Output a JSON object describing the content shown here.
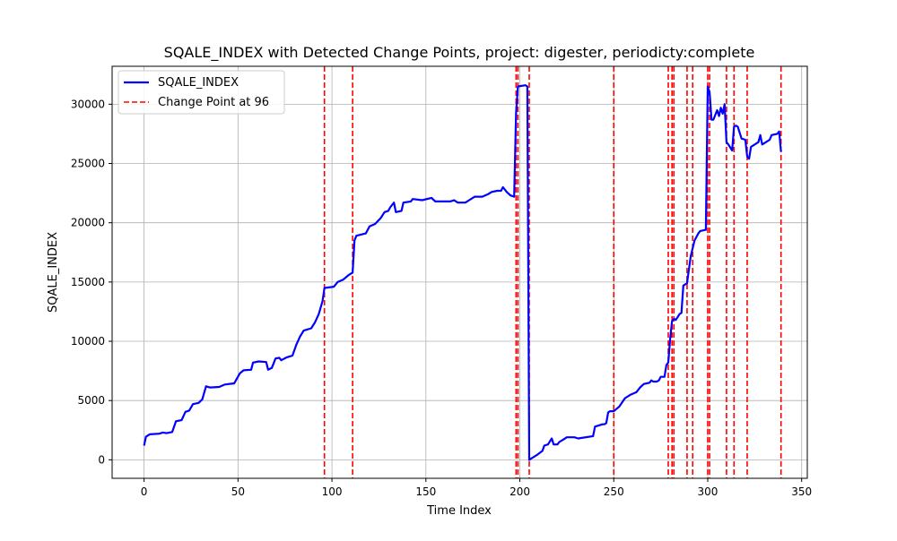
{
  "chart_data": {
    "type": "line",
    "title": "SQALE_INDEX with Detected Change Points, project: digester, periodicty:complete",
    "xlabel": "Time Index",
    "ylabel": "SQALE_INDEX",
    "xlim": [
      -17,
      353
    ],
    "ylim": [
      -1560,
      33200
    ],
    "xticks": [
      0,
      50,
      100,
      150,
      200,
      250,
      300,
      350
    ],
    "yticks": [
      0,
      5000,
      10000,
      15000,
      20000,
      25000,
      30000
    ],
    "grid": true,
    "legend_position": "top-left",
    "legend": [
      {
        "label": "SQALE_INDEX",
        "color": "#0000ff",
        "style": "solid"
      },
      {
        "label": "Change Point at 96",
        "color": "#ff0000",
        "style": "dashed"
      }
    ],
    "series_color": "#0000ff",
    "change_point_color": "#ff0000",
    "change_points": [
      96,
      111,
      198,
      199,
      205,
      250,
      279,
      281,
      282,
      289,
      292,
      300,
      301,
      310,
      314,
      321,
      339
    ],
    "series": [
      {
        "name": "SQALE_INDEX",
        "points": [
          [
            0,
            1200
          ],
          [
            1,
            1950
          ],
          [
            3,
            2150
          ],
          [
            8,
            2200
          ],
          [
            10,
            2300
          ],
          [
            12,
            2250
          ],
          [
            15,
            2350
          ],
          [
            16,
            2800
          ],
          [
            17,
            3250
          ],
          [
            20,
            3350
          ],
          [
            22,
            4050
          ],
          [
            24,
            4150
          ],
          [
            26,
            4700
          ],
          [
            29,
            4800
          ],
          [
            31,
            5100
          ],
          [
            33,
            6200
          ],
          [
            35,
            6100
          ],
          [
            40,
            6150
          ],
          [
            43,
            6350
          ],
          [
            48,
            6450
          ],
          [
            51,
            7300
          ],
          [
            53,
            7550
          ],
          [
            57,
            7600
          ],
          [
            58,
            8200
          ],
          [
            61,
            8300
          ],
          [
            65,
            8250
          ],
          [
            66,
            7600
          ],
          [
            68,
            7750
          ],
          [
            70,
            8550
          ],
          [
            72,
            8600
          ],
          [
            73,
            8400
          ],
          [
            76,
            8650
          ],
          [
            79,
            8800
          ],
          [
            81,
            9700
          ],
          [
            83,
            10400
          ],
          [
            85,
            10900
          ],
          [
            89,
            11100
          ],
          [
            91,
            11600
          ],
          [
            93,
            12300
          ],
          [
            95,
            13400
          ],
          [
            96,
            14500
          ],
          [
            101,
            14600
          ],
          [
            103,
            15000
          ],
          [
            106,
            15200
          ],
          [
            109,
            15600
          ],
          [
            111,
            15800
          ],
          [
            112,
            18500
          ],
          [
            113,
            18900
          ],
          [
            118,
            19100
          ],
          [
            120,
            19700
          ],
          [
            123,
            19900
          ],
          [
            126,
            20400
          ],
          [
            128,
            20900
          ],
          [
            130,
            21000
          ],
          [
            131,
            21300
          ],
          [
            133,
            21700
          ],
          [
            134,
            20900
          ],
          [
            137,
            21000
          ],
          [
            138,
            21700
          ],
          [
            142,
            21800
          ],
          [
            143,
            22000
          ],
          [
            148,
            21900
          ],
          [
            153,
            22100
          ],
          [
            155,
            21800
          ],
          [
            163,
            21800
          ],
          [
            165,
            21900
          ],
          [
            167,
            21700
          ],
          [
            171,
            21700
          ],
          [
            173,
            21900
          ],
          [
            176,
            22200
          ],
          [
            180,
            22200
          ],
          [
            183,
            22400
          ],
          [
            185,
            22600
          ],
          [
            188,
            22700
          ],
          [
            190,
            22700
          ],
          [
            191,
            23000
          ],
          [
            193,
            22600
          ],
          [
            195,
            22300
          ],
          [
            197,
            22200
          ],
          [
            198,
            29200
          ],
          [
            199,
            31500
          ],
          [
            203,
            31600
          ],
          [
            204,
            31500
          ],
          [
            205,
            0
          ],
          [
            206,
            100
          ],
          [
            209,
            400
          ],
          [
            212,
            750
          ],
          [
            213,
            1200
          ],
          [
            215,
            1300
          ],
          [
            217,
            1800
          ],
          [
            218,
            1300
          ],
          [
            220,
            1300
          ],
          [
            221,
            1500
          ],
          [
            223,
            1700
          ],
          [
            225,
            1900
          ],
          [
            229,
            1900
          ],
          [
            231,
            1800
          ],
          [
            239,
            2000
          ],
          [
            240,
            2800
          ],
          [
            244,
            3000
          ],
          [
            245,
            3000
          ],
          [
            246,
            3100
          ],
          [
            247,
            4000
          ],
          [
            248,
            4100
          ],
          [
            250,
            4100
          ],
          [
            253,
            4500
          ],
          [
            256,
            5200
          ],
          [
            259,
            5500
          ],
          [
            262,
            5700
          ],
          [
            264,
            6100
          ],
          [
            266,
            6400
          ],
          [
            269,
            6500
          ],
          [
            270,
            6700
          ],
          [
            271,
            6600
          ],
          [
            273,
            6600
          ],
          [
            274,
            6700
          ],
          [
            275,
            7000
          ],
          [
            277,
            7000
          ],
          [
            278,
            8000
          ],
          [
            279,
            8200
          ],
          [
            280,
            10200
          ],
          [
            281,
            11700
          ],
          [
            282,
            11900
          ],
          [
            283,
            11800
          ],
          [
            285,
            12300
          ],
          [
            286,
            12400
          ],
          [
            287,
            14700
          ],
          [
            289,
            14900
          ],
          [
            291,
            17200
          ],
          [
            293,
            18500
          ],
          [
            295,
            19100
          ],
          [
            296,
            19300
          ],
          [
            299,
            19400
          ],
          [
            300,
            31500
          ],
          [
            301,
            31000
          ],
          [
            302,
            28700
          ],
          [
            303,
            28700
          ],
          [
            305,
            29500
          ],
          [
            306,
            29000
          ],
          [
            307,
            29700
          ],
          [
            308,
            29200
          ],
          [
            309,
            30000
          ],
          [
            310,
            26800
          ],
          [
            311,
            26600
          ],
          [
            313,
            26100
          ],
          [
            314,
            28100
          ],
          [
            315,
            28200
          ],
          [
            316,
            28100
          ],
          [
            318,
            27100
          ],
          [
            320,
            27000
          ],
          [
            321,
            25600
          ],
          [
            322,
            25400
          ],
          [
            323,
            26400
          ],
          [
            325,
            26600
          ],
          [
            327,
            26800
          ],
          [
            328,
            27400
          ],
          [
            329,
            26600
          ],
          [
            331,
            26800
          ],
          [
            333,
            27000
          ],
          [
            334,
            27400
          ],
          [
            337,
            27500
          ],
          [
            338,
            27700
          ],
          [
            339,
            26000
          ]
        ]
      }
    ]
  }
}
